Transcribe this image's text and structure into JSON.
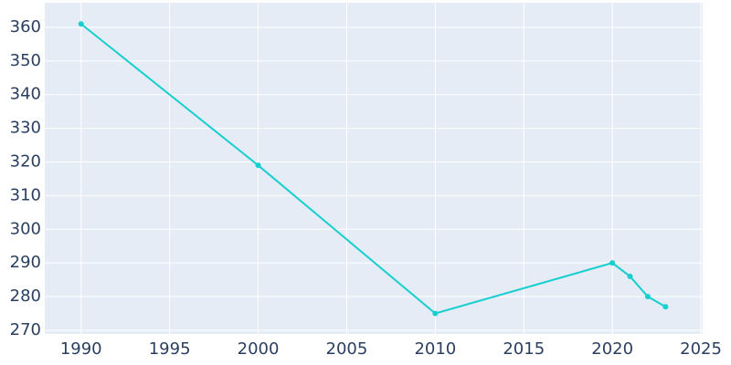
{
  "chart_data": {
    "type": "line",
    "x": [
      1990,
      2000,
      2010,
      2020,
      2021,
      2022,
      2023
    ],
    "series": [
      {
        "color": "#17cfcf",
        "values": [
          361,
          319,
          275,
          290,
          286,
          280,
          277
        ]
      }
    ],
    "xlim": [
      1987.95,
      2025.1
    ],
    "xticks": [
      1990,
      1995,
      2000,
      2005,
      2010,
      2015,
      2020,
      2025
    ],
    "ylim": [
      268.9,
      367.3
    ],
    "yticks": [
      270,
      280,
      290,
      300,
      310,
      320,
      330,
      340,
      350,
      360
    ],
    "grid": true
  }
}
